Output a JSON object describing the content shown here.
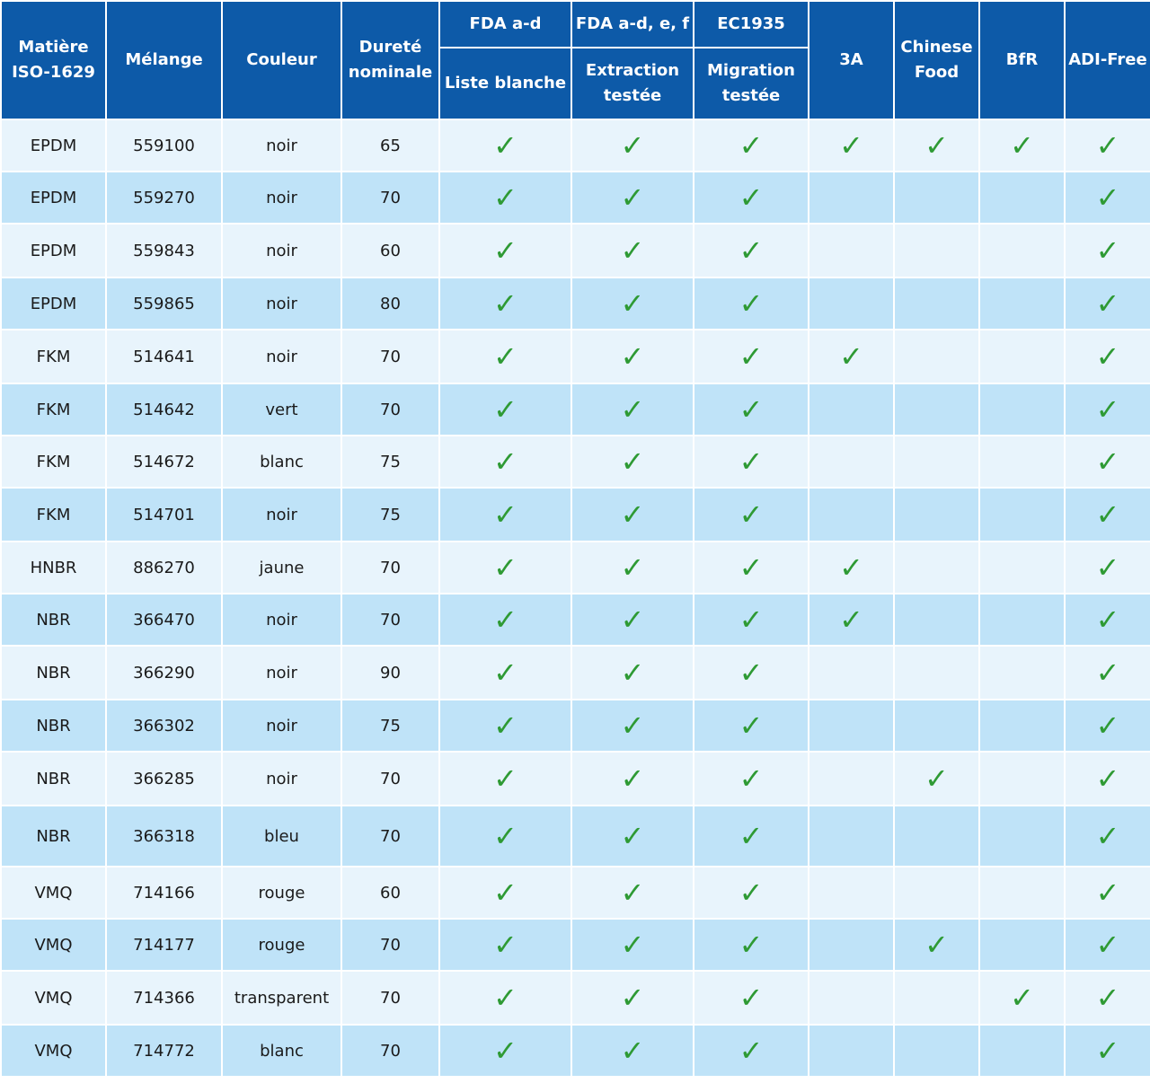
{
  "headers": {
    "matiere": "Matière ISO-1629",
    "melange": "Mélange",
    "couleur": "Couleur",
    "durete": "Dureté nominale",
    "fda_ad": "FDA a-d",
    "fda_adef": "FDA a-d, e, f",
    "ec1935": "EC1935",
    "liste_blanche": "Liste blanche",
    "extraction": "Extraction testée",
    "migration": "Migration testée",
    "a3": "3A",
    "chinese_food": "Chinese Food",
    "bfr": "BfR",
    "adi_free": "ADI-Free"
  },
  "check_symbol": "✓",
  "check_color": "#2e9a34",
  "header_color": "#0d5aa8",
  "rows": [
    {
      "matiere": "EPDM",
      "melange": "559100",
      "couleur": "noir",
      "durete": "65",
      "fda_ad": true,
      "fda_adef": true,
      "ec1935": true,
      "a3": true,
      "chinese_food": true,
      "bfr": true,
      "adi_free": true
    },
    {
      "matiere": "EPDM",
      "melange": "559270",
      "couleur": "noir",
      "durete": "70",
      "fda_ad": true,
      "fda_adef": true,
      "ec1935": true,
      "a3": false,
      "chinese_food": false,
      "bfr": false,
      "adi_free": true
    },
    {
      "matiere": "EPDM",
      "melange": "559843",
      "couleur": "noir",
      "durete": "60",
      "fda_ad": true,
      "fda_adef": true,
      "ec1935": true,
      "a3": false,
      "chinese_food": false,
      "bfr": false,
      "adi_free": true
    },
    {
      "matiere": "EPDM",
      "melange": "559865",
      "couleur": "noir",
      "durete": "80",
      "fda_ad": true,
      "fda_adef": true,
      "ec1935": true,
      "a3": false,
      "chinese_food": false,
      "bfr": false,
      "adi_free": true
    },
    {
      "matiere": "FKM",
      "melange": "514641",
      "couleur": "noir",
      "durete": "70",
      "fda_ad": true,
      "fda_adef": true,
      "ec1935": true,
      "a3": true,
      "chinese_food": false,
      "bfr": false,
      "adi_free": true
    },
    {
      "matiere": "FKM",
      "melange": "514642",
      "couleur": "vert",
      "durete": "70",
      "fda_ad": true,
      "fda_adef": true,
      "ec1935": true,
      "a3": false,
      "chinese_food": false,
      "bfr": false,
      "adi_free": true
    },
    {
      "matiere": "FKM",
      "melange": "514672",
      "couleur": "blanc",
      "durete": "75",
      "fda_ad": true,
      "fda_adef": true,
      "ec1935": true,
      "a3": false,
      "chinese_food": false,
      "bfr": false,
      "adi_free": true
    },
    {
      "matiere": "FKM",
      "melange": "514701",
      "couleur": "noir",
      "durete": "75",
      "fda_ad": true,
      "fda_adef": true,
      "ec1935": true,
      "a3": false,
      "chinese_food": false,
      "bfr": false,
      "adi_free": true
    },
    {
      "matiere": "HNBR",
      "melange": "886270",
      "couleur": "jaune",
      "durete": "70",
      "fda_ad": true,
      "fda_adef": true,
      "ec1935": true,
      "a3": true,
      "chinese_food": false,
      "bfr": false,
      "adi_free": true
    },
    {
      "matiere": "NBR",
      "melange": "366470",
      "couleur": "noir",
      "durete": "70",
      "fda_ad": true,
      "fda_adef": true,
      "ec1935": true,
      "a3": true,
      "chinese_food": false,
      "bfr": false,
      "adi_free": true
    },
    {
      "matiere": "NBR",
      "melange": "366290",
      "couleur": "noir",
      "durete": "90",
      "fda_ad": true,
      "fda_adef": true,
      "ec1935": true,
      "a3": false,
      "chinese_food": false,
      "bfr": false,
      "adi_free": true
    },
    {
      "matiere": "NBR",
      "melange": "366302",
      "couleur": "noir",
      "durete": "75",
      "fda_ad": true,
      "fda_adef": true,
      "ec1935": true,
      "a3": false,
      "chinese_food": false,
      "bfr": false,
      "adi_free": true
    },
    {
      "matiere": "NBR",
      "melange": "366285",
      "couleur": "noir",
      "durete": "70",
      "fda_ad": true,
      "fda_adef": true,
      "ec1935": true,
      "a3": false,
      "chinese_food": true,
      "bfr": false,
      "adi_free": true
    },
    {
      "matiere": "NBR",
      "melange": "366318",
      "couleur": "bleu",
      "durete": "70",
      "fda_ad": true,
      "fda_adef": true,
      "ec1935": true,
      "a3": false,
      "chinese_food": false,
      "bfr": false,
      "adi_free": true
    },
    {
      "matiere": "VMQ",
      "melange": "714166",
      "couleur": "rouge",
      "durete": "60",
      "fda_ad": true,
      "fda_adef": true,
      "ec1935": true,
      "a3": false,
      "chinese_food": false,
      "bfr": false,
      "adi_free": true
    },
    {
      "matiere": "VMQ",
      "melange": "714177",
      "couleur": "rouge",
      "durete": "70",
      "fda_ad": true,
      "fda_adef": true,
      "ec1935": true,
      "a3": false,
      "chinese_food": true,
      "bfr": false,
      "adi_free": true
    },
    {
      "matiere": "VMQ",
      "melange": "714366",
      "couleur": "transparent",
      "durete": "70",
      "fda_ad": true,
      "fda_adef": true,
      "ec1935": true,
      "a3": false,
      "chinese_food": false,
      "bfr": true,
      "adi_free": true
    },
    {
      "matiere": "VMQ",
      "melange": "714772",
      "couleur": "blanc",
      "durete": "70",
      "fda_ad": true,
      "fda_adef": true,
      "ec1935": true,
      "a3": false,
      "chinese_food": false,
      "bfr": false,
      "adi_free": true
    }
  ]
}
